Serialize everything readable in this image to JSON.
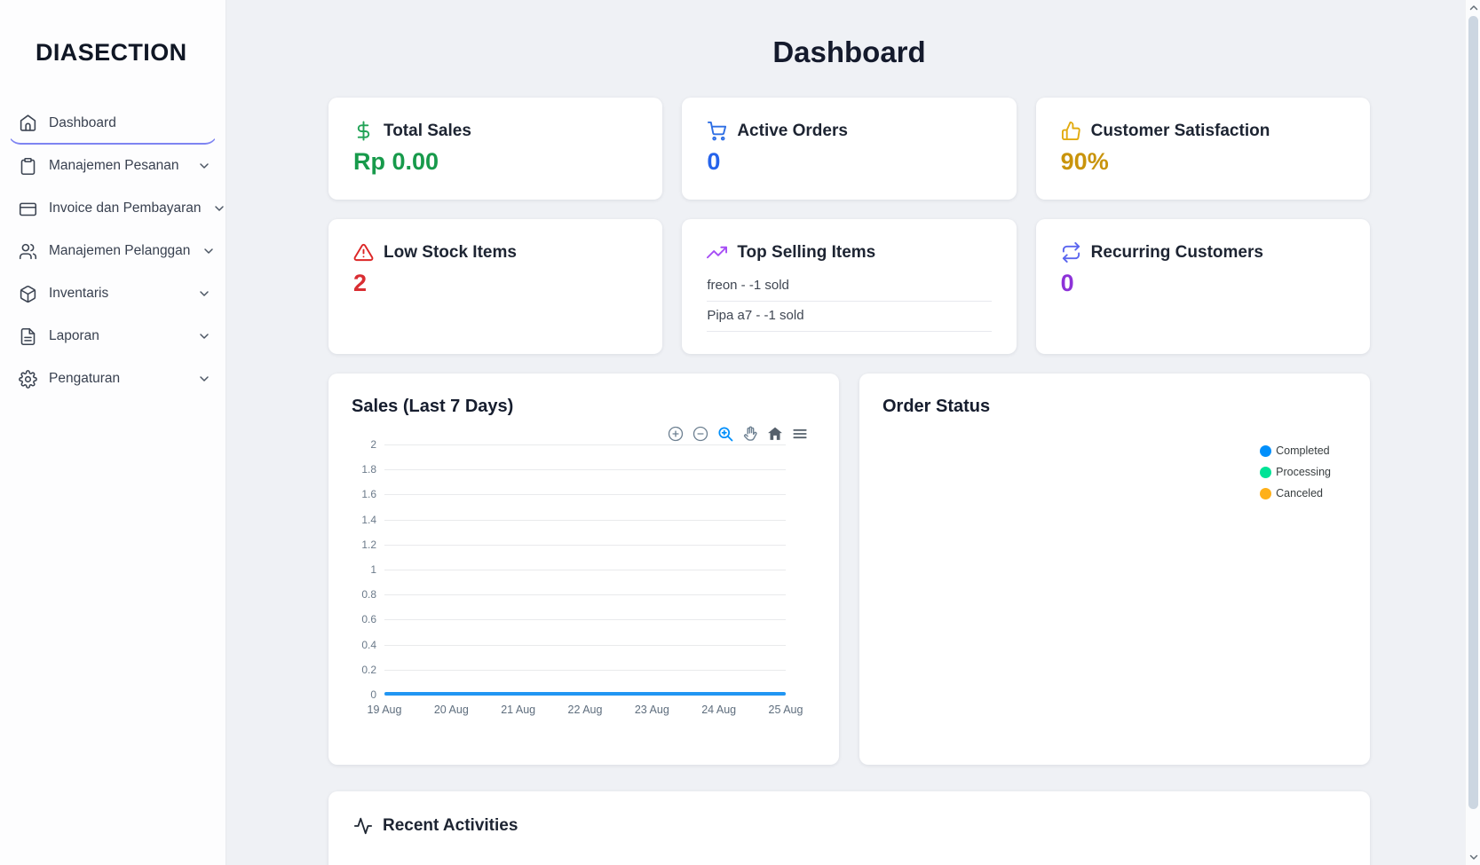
{
  "sidebar": {
    "logo": "DIASECTION",
    "items": [
      {
        "label": "Dashboard",
        "icon": "home",
        "active": true
      },
      {
        "label": "Manajemen Pesanan",
        "icon": "clipboard"
      },
      {
        "label": "Invoice dan Pembayaran",
        "icon": "credit-card"
      },
      {
        "label": "Manajemen Pelanggan",
        "icon": "users"
      },
      {
        "label": "Inventaris",
        "icon": "package"
      },
      {
        "label": "Laporan",
        "icon": "file-text"
      },
      {
        "label": "Pengaturan",
        "icon": "gear"
      }
    ]
  },
  "header": {
    "title": "Dashboard"
  },
  "stats": {
    "total_sales": {
      "title": "Total Sales",
      "value": "Rp 0.00",
      "color": "#179a4b",
      "icon": "dollar-sign"
    },
    "active_orders": {
      "title": "Active Orders",
      "value": "0",
      "color": "#2563eb",
      "icon": "shopping-cart"
    },
    "customer_satisfaction": {
      "title": "Customer Satisfaction",
      "value": "90%",
      "color": "#c9940c",
      "icon": "thumbs-up"
    },
    "low_stock": {
      "title": "Low Stock Items",
      "value": "2",
      "color": "#d92d32",
      "icon": "alert-triangle"
    },
    "top_selling": {
      "title": "Top Selling Items",
      "icon": "trending-up",
      "items": [
        "freon - -1 sold",
        "Pipa a7 - -1 sold"
      ]
    },
    "recurring": {
      "title": "Recurring Customers",
      "value": "0",
      "color": "#8d32d8",
      "icon": "repeat"
    }
  },
  "sales_panel": {
    "title": "Sales (Last 7 Days)"
  },
  "order_status_panel": {
    "title": "Order Status",
    "legend": [
      {
        "label": "Completed",
        "color": "#008FFB"
      },
      {
        "label": "Processing",
        "color": "#00E396"
      },
      {
        "label": "Canceled",
        "color": "#FEB019"
      }
    ]
  },
  "recent_activities": {
    "title": "Recent Activities"
  },
  "chart_data": [
    {
      "type": "line",
      "title": "Sales (Last 7 Days)",
      "x": [
        "19 Aug",
        "20 Aug",
        "21 Aug",
        "22 Aug",
        "23 Aug",
        "24 Aug",
        "25 Aug"
      ],
      "series": [
        {
          "name": "Sales",
          "values": [
            0,
            0,
            0,
            0,
            0,
            0,
            0
          ],
          "color": "#2196f3"
        }
      ],
      "ylim": [
        0,
        2
      ],
      "y_ticks": [
        "2",
        "1.8",
        "1.6",
        "1.4",
        "1.2",
        "1",
        "0.8",
        "0.6",
        "0.4",
        "0.2",
        "0"
      ],
      "grid": true,
      "legend_position": "none",
      "toolbar": [
        "zoom-in",
        "zoom-out",
        "selection-zoom",
        "pan",
        "home",
        "menu"
      ]
    },
    {
      "type": "pie",
      "title": "Order Status",
      "categories": [
        "Completed",
        "Processing",
        "Canceled"
      ],
      "values": [
        0,
        0,
        0
      ],
      "colors": [
        "#008FFB",
        "#00E396",
        "#FEB019"
      ],
      "legend_position": "right"
    }
  ]
}
